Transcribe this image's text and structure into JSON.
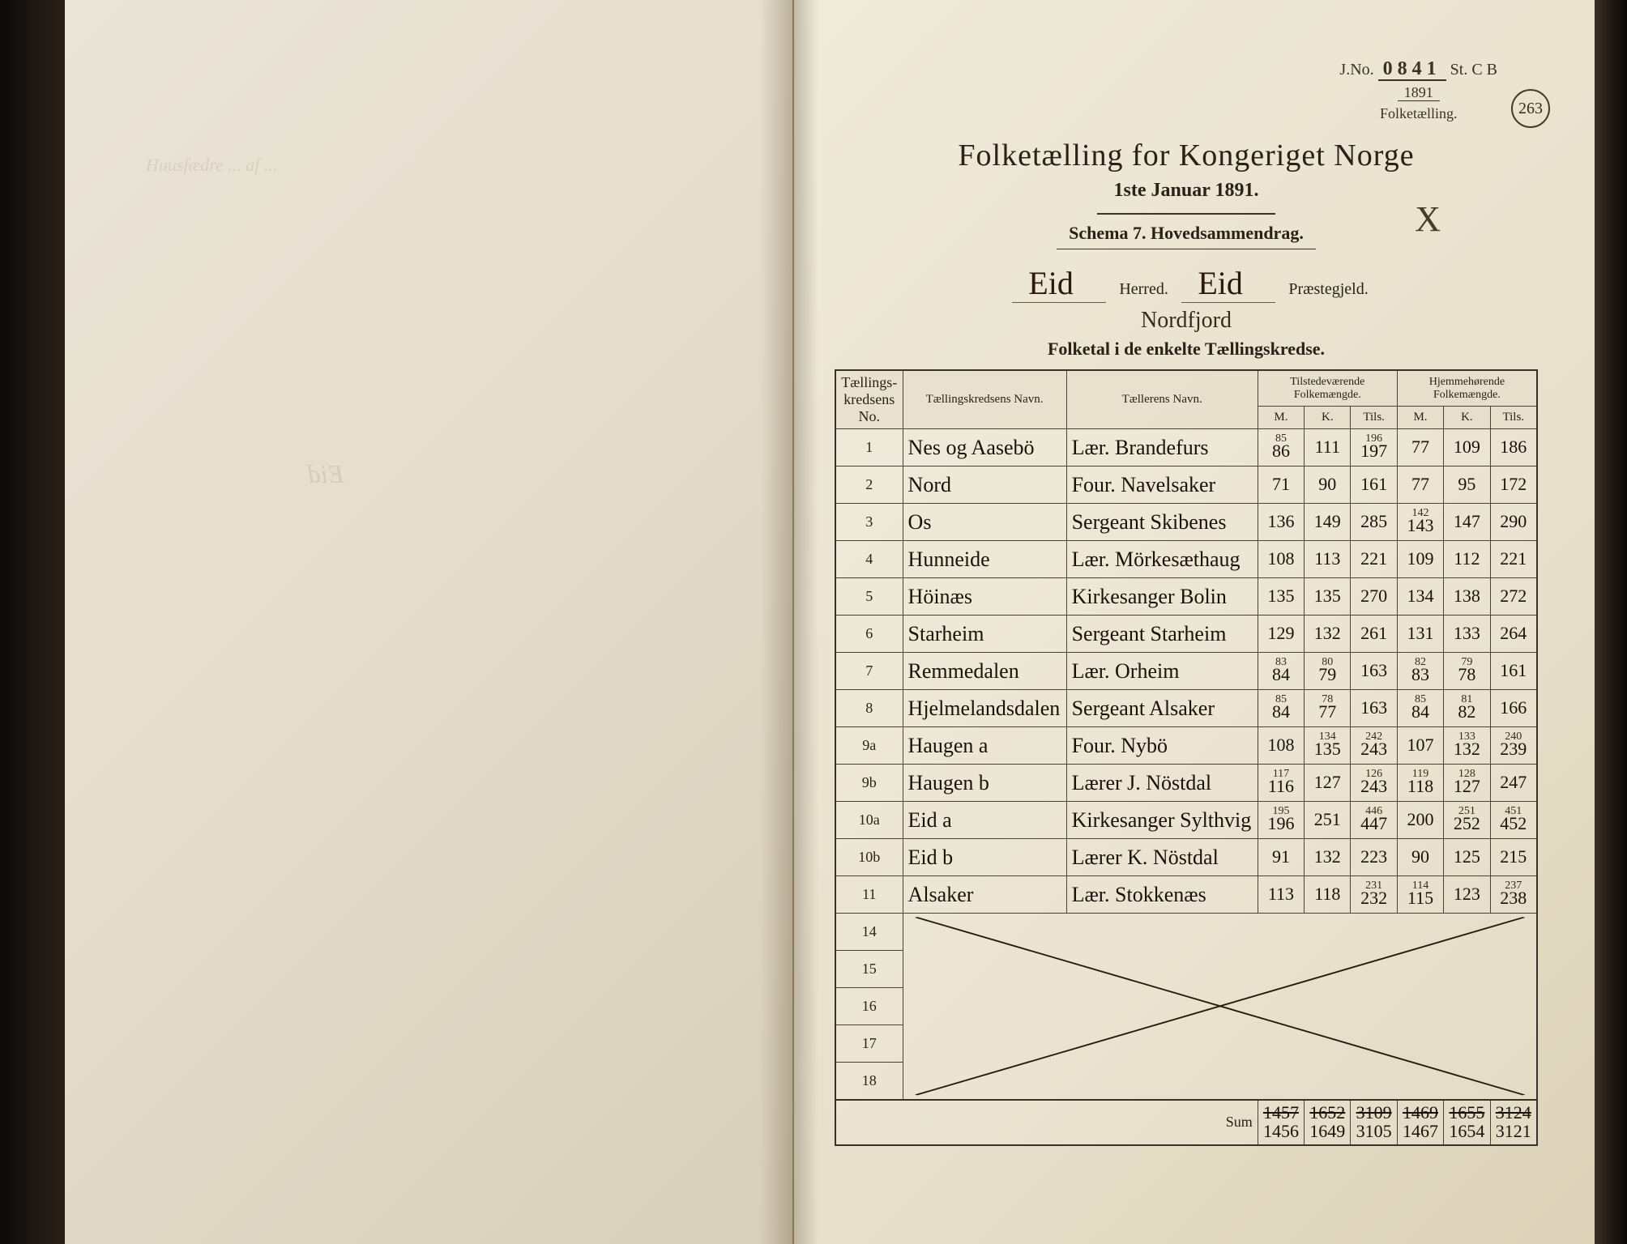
{
  "header": {
    "jno_label": "J.No.",
    "jno_num": "0841",
    "jno_suffix": "St. C B",
    "year": "1891",
    "year_label": "Folketælling.",
    "page_circle": "263"
  },
  "title": {
    "main": "Folketælling for Kongeriget Norge",
    "date": "1ste Januar 1891.",
    "schema": "Schema 7.  Hovedsammendrag.",
    "herred_value": "Eid",
    "herred_label": "Herred.",
    "praeste_value": "Eid",
    "praeste_label": "Præstegjeld.",
    "fogderi": "Nordfjord",
    "subtitle": "Folketal i de enkelte Tællingskredse.",
    "x_mark": "X"
  },
  "columns": {
    "no": "Tællings-\nkredsens No.",
    "name": "Tællingskredsens Navn.",
    "enum": "Tællerens Navn.",
    "grp1": "Tilstedeværende\nFolkemængde.",
    "grp2": "Hjemmehørende\nFolkemængde.",
    "m": "M.",
    "k": "K.",
    "tils": "Tils."
  },
  "rows": [
    {
      "no": "1",
      "name": "Nes og Aasebö",
      "enum": "Lær. Brandefurs",
      "m1": "86",
      "m1c": "85",
      "k1": "111",
      "t1": "197",
      "t1c": "196",
      "m2": "77",
      "k2": "109",
      "t2": "186"
    },
    {
      "no": "2",
      "name": "Nord",
      "enum": "Four. Navelsaker",
      "m1": "71",
      "k1": "90",
      "t1": "161",
      "m2": "77",
      "k2": "95",
      "t2": "172"
    },
    {
      "no": "3",
      "name": "Os",
      "enum": "Sergeant Skibenes",
      "m1": "136",
      "k1": "149",
      "t1": "285",
      "m2": "143",
      "m2c": "142",
      "k2": "147",
      "t2": "290"
    },
    {
      "no": "4",
      "name": "Hunneide",
      "enum": "Lær. Mörkesæthaug",
      "m1": "108",
      "k1": "113",
      "t1": "221",
      "m2": "109",
      "k2": "112",
      "t2": "221"
    },
    {
      "no": "5",
      "name": "Höinæs",
      "enum": "Kirkesanger Bolin",
      "m1": "135",
      "k1": "135",
      "t1": "270",
      "m2": "134",
      "k2": "138",
      "t2": "272"
    },
    {
      "no": "6",
      "name": "Starheim",
      "enum": "Sergeant Starheim",
      "m1": "129",
      "k1": "132",
      "t1": "261",
      "m2": "131",
      "k2": "133",
      "t2": "264"
    },
    {
      "no": "7",
      "name": "Remmedalen",
      "enum": "Lær. Orheim",
      "m1": "84",
      "m1c": "83",
      "k1": "79",
      "k1c": "80",
      "t1": "163",
      "m2": "83",
      "m2c": "82",
      "k2": "78",
      "k2c": "79",
      "t2": "161"
    },
    {
      "no": "8",
      "name": "Hjelmelandsdalen",
      "enum": "Sergeant Alsaker",
      "m1": "84",
      "m1c": "85",
      "k1": "77",
      "k1c": "78",
      "t1": "163",
      "m2": "84",
      "m2c": "85",
      "k2": "82",
      "k2c": "81",
      "t2": "166"
    },
    {
      "no": "9a",
      "name": "Haugen a",
      "enum": "Four. Nybö",
      "m1": "108",
      "k1": "135",
      "k1c": "134",
      "t1": "243",
      "t1c": "242",
      "m2": "107",
      "k2": "132",
      "k2c": "133",
      "t2": "239",
      "t2c": "240"
    },
    {
      "no": "9b",
      "name": "Haugen b",
      "enum": "Lærer J. Nöstdal",
      "m1": "116",
      "m1c": "117",
      "k1": "127",
      "t1": "243",
      "t1c": "126",
      "m2": "118",
      "m2c": "119",
      "k2": "127",
      "k2c": "128",
      "t2": "247"
    },
    {
      "no": "10a",
      "name": "Eid a",
      "enum": "Kirkesanger Sylthvig",
      "m1": "196",
      "m1c": "195",
      "k1": "251",
      "t1": "447",
      "t1c": "446",
      "m2": "200",
      "k2": "252",
      "k2c": "251",
      "t2": "452",
      "t2c": "451"
    },
    {
      "no": "10b",
      "name": "Eid b",
      "enum": "Lærer K. Nöstdal",
      "m1": "91",
      "k1": "132",
      "t1": "223",
      "m2": "90",
      "k2": "125",
      "t2": "215"
    },
    {
      "no": "11",
      "name": "Alsaker",
      "enum": "Lær. Stokkenæs",
      "m1": "113",
      "k1": "118",
      "t1": "232",
      "t1c": "231",
      "m2": "115",
      "m2c": "114",
      "k2": "123",
      "t2": "238",
      "t2c": "237"
    }
  ],
  "empty_rows": [
    "14",
    "15",
    "16",
    "17",
    "18"
  ],
  "sum": {
    "label": "Sum",
    "m1": "1456",
    "m1s": "1457",
    "k1": "1649",
    "k1s": "1652",
    "t1": "3105",
    "t1s": "3109",
    "m2": "1467",
    "m2s": "1469",
    "k2": "1654",
    "k2s": "1655",
    "t2": "3121",
    "t2s": "3124"
  },
  "bleed": {
    "top": "Huusfædre ... af ... ",
    "mid": "Eid"
  },
  "colors": {
    "ink": "#2a2218",
    "paper": "#e8e0cc",
    "rule": "#3a3228"
  }
}
